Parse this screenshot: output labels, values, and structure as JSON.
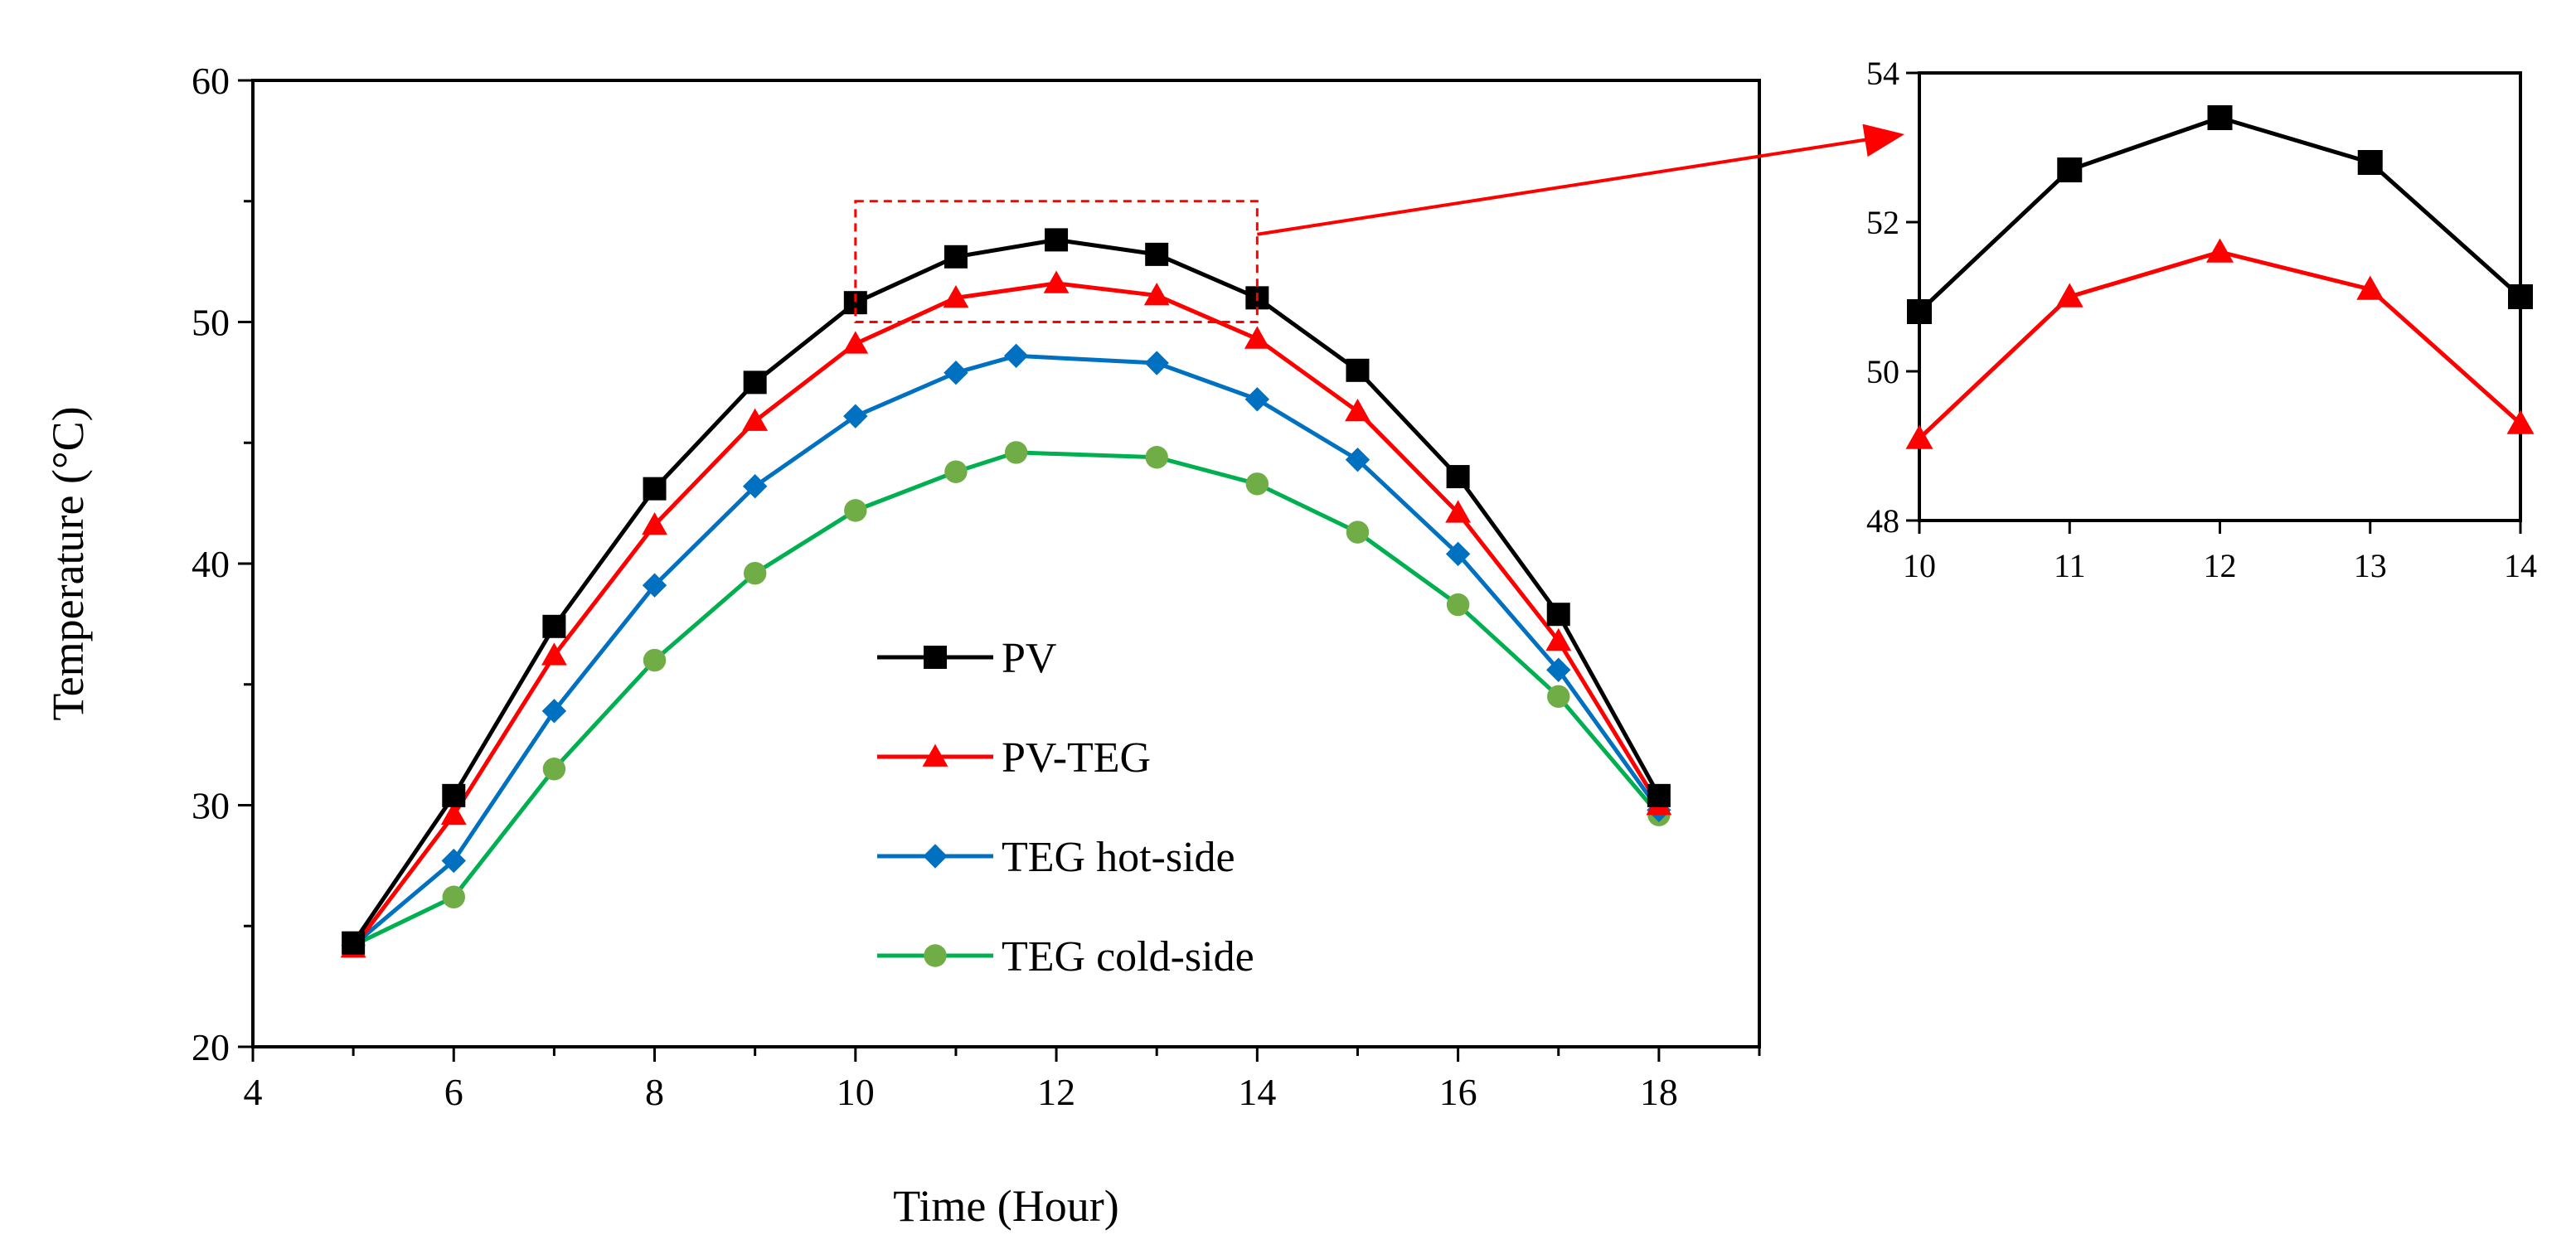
{
  "chart_data": [
    {
      "id": "main",
      "type": "line",
      "title": "",
      "xlabel": "Time (Hour)",
      "ylabel": "Temperature (°C)",
      "xlim": [
        4,
        19
      ],
      "ylim": [
        20,
        60
      ],
      "xticks": [
        4,
        6,
        8,
        10,
        12,
        14,
        16,
        18
      ],
      "yticks": [
        20,
        30,
        40,
        50,
        60
      ],
      "legend_position": "center",
      "grid": false,
      "series": [
        {
          "name": "PV",
          "color": "#000000",
          "marker": "square",
          "x": [
            5,
            6,
            7,
            8,
            9,
            10,
            11,
            12,
            13,
            14,
            15,
            16,
            17,
            18
          ],
          "values": [
            24.3,
            30.4,
            37.4,
            43.1,
            47.5,
            50.8,
            52.7,
            53.4,
            52.8,
            51.0,
            48.0,
            43.6,
            37.9,
            30.4
          ]
        },
        {
          "name": "PV-TEG",
          "color": "#ff0000",
          "marker": "triangle",
          "x": [
            5,
            6,
            7,
            8,
            9,
            10,
            11,
            12,
            13,
            14,
            15,
            16,
            17,
            18
          ],
          "values": [
            24.1,
            29.6,
            36.2,
            41.6,
            45.9,
            49.1,
            51.0,
            51.6,
            51.1,
            49.3,
            46.3,
            42.1,
            36.8,
            30.0
          ]
        },
        {
          "name": "TEG hot-side",
          "color": "#0070c0",
          "marker": "diamond",
          "x": [
            5,
            6,
            7,
            8,
            9,
            10,
            11,
            11.6,
            13,
            14,
            15,
            16,
            17,
            18
          ],
          "values": [
            24.2,
            27.7,
            33.9,
            39.1,
            43.2,
            46.1,
            47.9,
            48.6,
            48.3,
            46.8,
            44.3,
            40.4,
            35.6,
            29.8
          ]
        },
        {
          "name": "TEG cold-side",
          "color": "#00b050",
          "marker": "circle",
          "marker_color": "#70ad47",
          "x": [
            5,
            6,
            7,
            8,
            9,
            10,
            11,
            11.6,
            13,
            14,
            15,
            16,
            17,
            18
          ],
          "values": [
            24.2,
            26.2,
            31.5,
            36.0,
            39.6,
            42.2,
            43.8,
            44.6,
            44.4,
            43.3,
            41.3,
            38.3,
            34.5,
            29.6
          ]
        }
      ],
      "zoom_box": {
        "xrange": [
          10,
          14
        ],
        "yrange": [
          50,
          55
        ],
        "color": "#ff0000"
      }
    },
    {
      "id": "inset",
      "type": "line",
      "title": "",
      "xlabel": "",
      "ylabel": "",
      "xlim": [
        10,
        14
      ],
      "ylim": [
        48,
        54
      ],
      "xticks": [
        10,
        11,
        12,
        13,
        14
      ],
      "yticks": [
        48,
        50,
        52,
        54
      ],
      "grid": false,
      "series": [
        {
          "name": "PV",
          "color": "#000000",
          "marker": "square",
          "x": [
            10,
            11,
            12,
            13,
            14
          ],
          "values": [
            50.8,
            52.7,
            53.4,
            52.8,
            51.0
          ]
        },
        {
          "name": "PV-TEG",
          "color": "#ff0000",
          "marker": "triangle",
          "x": [
            10,
            11,
            12,
            13,
            14
          ],
          "values": [
            49.1,
            51.0,
            51.6,
            51.1,
            49.3
          ]
        }
      ]
    }
  ]
}
